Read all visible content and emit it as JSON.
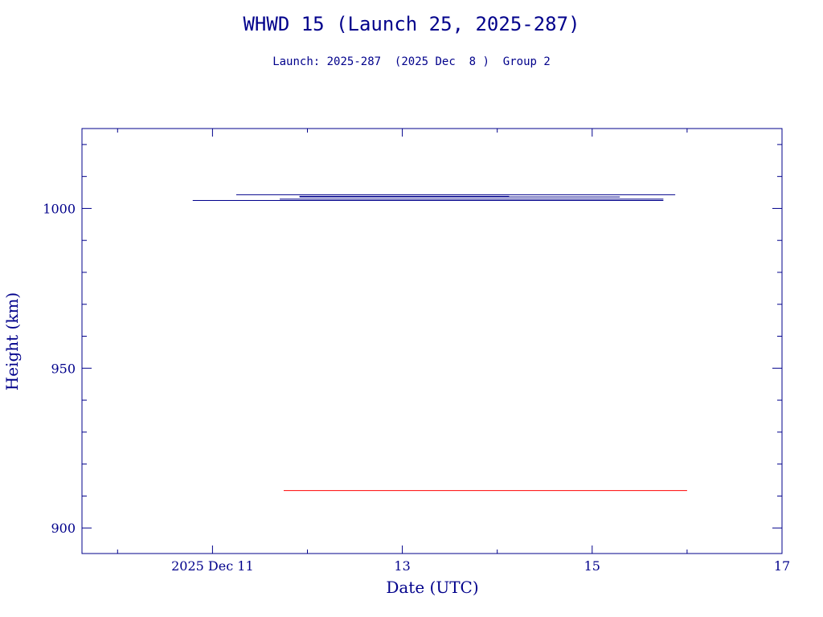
{
  "chart_data": {
    "type": "line",
    "title": "WHWD 15 (Launch 25, 2025-287)",
    "subtitle": "Launch: 2025-287  (2025 Dec  8 )  Group 2",
    "xlabel": "Date (UTC)",
    "ylabel": "Height (km)",
    "x_unit": "days",
    "xlim": [
      "2025-12-09T15:00",
      "2025-12-17T00:00"
    ],
    "ylim": [
      892,
      1025
    ],
    "x_ticks": [
      {
        "value": "2025-12-11",
        "label": "2025 Dec 11"
      },
      {
        "value": "2025-12-13",
        "label": "13"
      },
      {
        "value": "2025-12-15",
        "label": "15"
      },
      {
        "value": "2025-12-17",
        "label": "17"
      }
    ],
    "x_minor_ticks": [
      "2025-12-10",
      "2025-12-12",
      "2025-12-14",
      "2025-12-16"
    ],
    "y_ticks": [
      {
        "value": 900,
        "label": "900"
      },
      {
        "value": 950,
        "label": "950"
      },
      {
        "value": 1000,
        "label": "1000"
      }
    ],
    "y_minor_ticks": [
      910,
      920,
      930,
      940,
      960,
      970,
      980,
      990,
      1010,
      1020
    ],
    "grid": false,
    "segments": [
      {
        "x_start": "2025-12-11T06:00",
        "x_end": "2025-12-15T21:00",
        "y": 1004.3,
        "color": "#00008b"
      },
      {
        "x_start": "2025-12-11T22:00",
        "x_end": "2025-12-14T03:00",
        "y": 1003.8,
        "color": "#00008b"
      },
      {
        "x_start": "2025-12-11T22:00",
        "x_end": "2025-12-15T07:00",
        "y": 1003.6,
        "color": "#00008b"
      },
      {
        "x_start": "2025-12-11T17:00",
        "x_end": "2025-12-15T18:00",
        "y": 1002.9,
        "color": "#00008b"
      },
      {
        "x_start": "2025-12-10T19:00",
        "x_end": "2025-12-15T18:00",
        "y": 1002.5,
        "color": "#00008b"
      },
      {
        "x_start": "2025-12-11T18:00",
        "x_end": "2025-12-16T00:00",
        "y": 911.7,
        "color": "#ff0000"
      }
    ]
  }
}
